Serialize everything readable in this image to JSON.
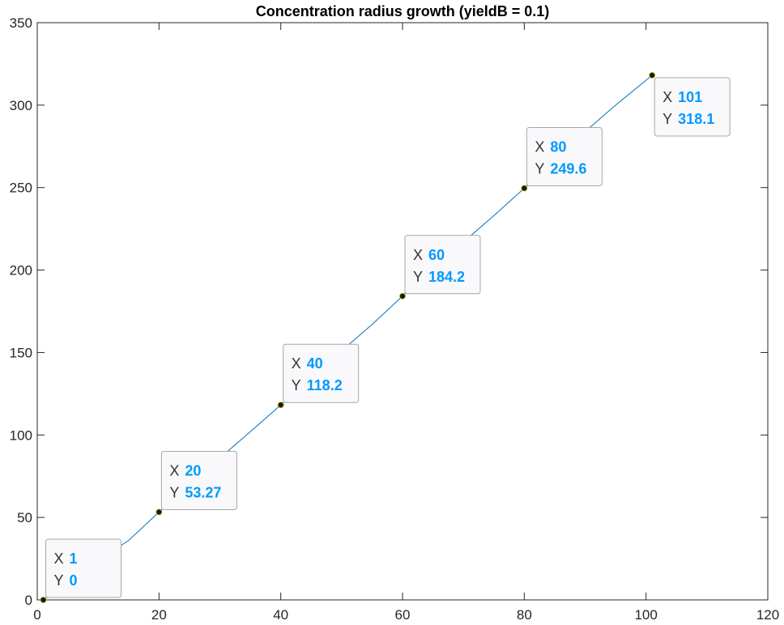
{
  "chart_data": {
    "type": "line",
    "title": "Concentration radius growth  (yieldB = 0.1)",
    "xlabel": "",
    "ylabel": "",
    "xlim": [
      0,
      120
    ],
    "ylim": [
      0,
      350
    ],
    "xticks": [
      0,
      20,
      40,
      60,
      80,
      100,
      120
    ],
    "yticks": [
      0,
      50,
      100,
      150,
      200,
      250,
      300,
      350
    ],
    "grid": false,
    "line_color": "#0072BD",
    "marker_color": "#1a1a1a",
    "datatip_value_color": "#0099FF",
    "series": [
      {
        "x": [
          1,
          5,
          10,
          15,
          20,
          25,
          30,
          35,
          40,
          45,
          50,
          55,
          60,
          65,
          70,
          75,
          80,
          85,
          90,
          95,
          101
        ],
        "y": [
          0,
          12,
          24,
          36,
          53.27,
          70,
          86,
          102,
          118.2,
          135,
          151,
          167,
          184.2,
          201,
          217,
          233,
          249.6,
          267,
          284,
          300,
          318.1
        ]
      }
    ],
    "datatips": [
      {
        "x_label": "X",
        "y_label": "Y",
        "x_text": "1",
        "y_text": "0",
        "x": 1,
        "y": 0
      },
      {
        "x_label": "X",
        "y_label": "Y",
        "x_text": "20",
        "y_text": "53.27",
        "x": 20,
        "y": 53.27
      },
      {
        "x_label": "X",
        "y_label": "Y",
        "x_text": "40",
        "y_text": "118.2",
        "x": 40,
        "y": 118.2
      },
      {
        "x_label": "X",
        "y_label": "Y",
        "x_text": "60",
        "y_text": "184.2",
        "x": 60,
        "y": 184.2
      },
      {
        "x_label": "X",
        "y_label": "Y",
        "x_text": "80",
        "y_text": "249.6",
        "x": 80,
        "y": 249.6
      },
      {
        "x_label": "X",
        "y_label": "Y",
        "x_text": "101",
        "y_text": "318.1",
        "x": 101,
        "y": 318.1
      }
    ]
  }
}
